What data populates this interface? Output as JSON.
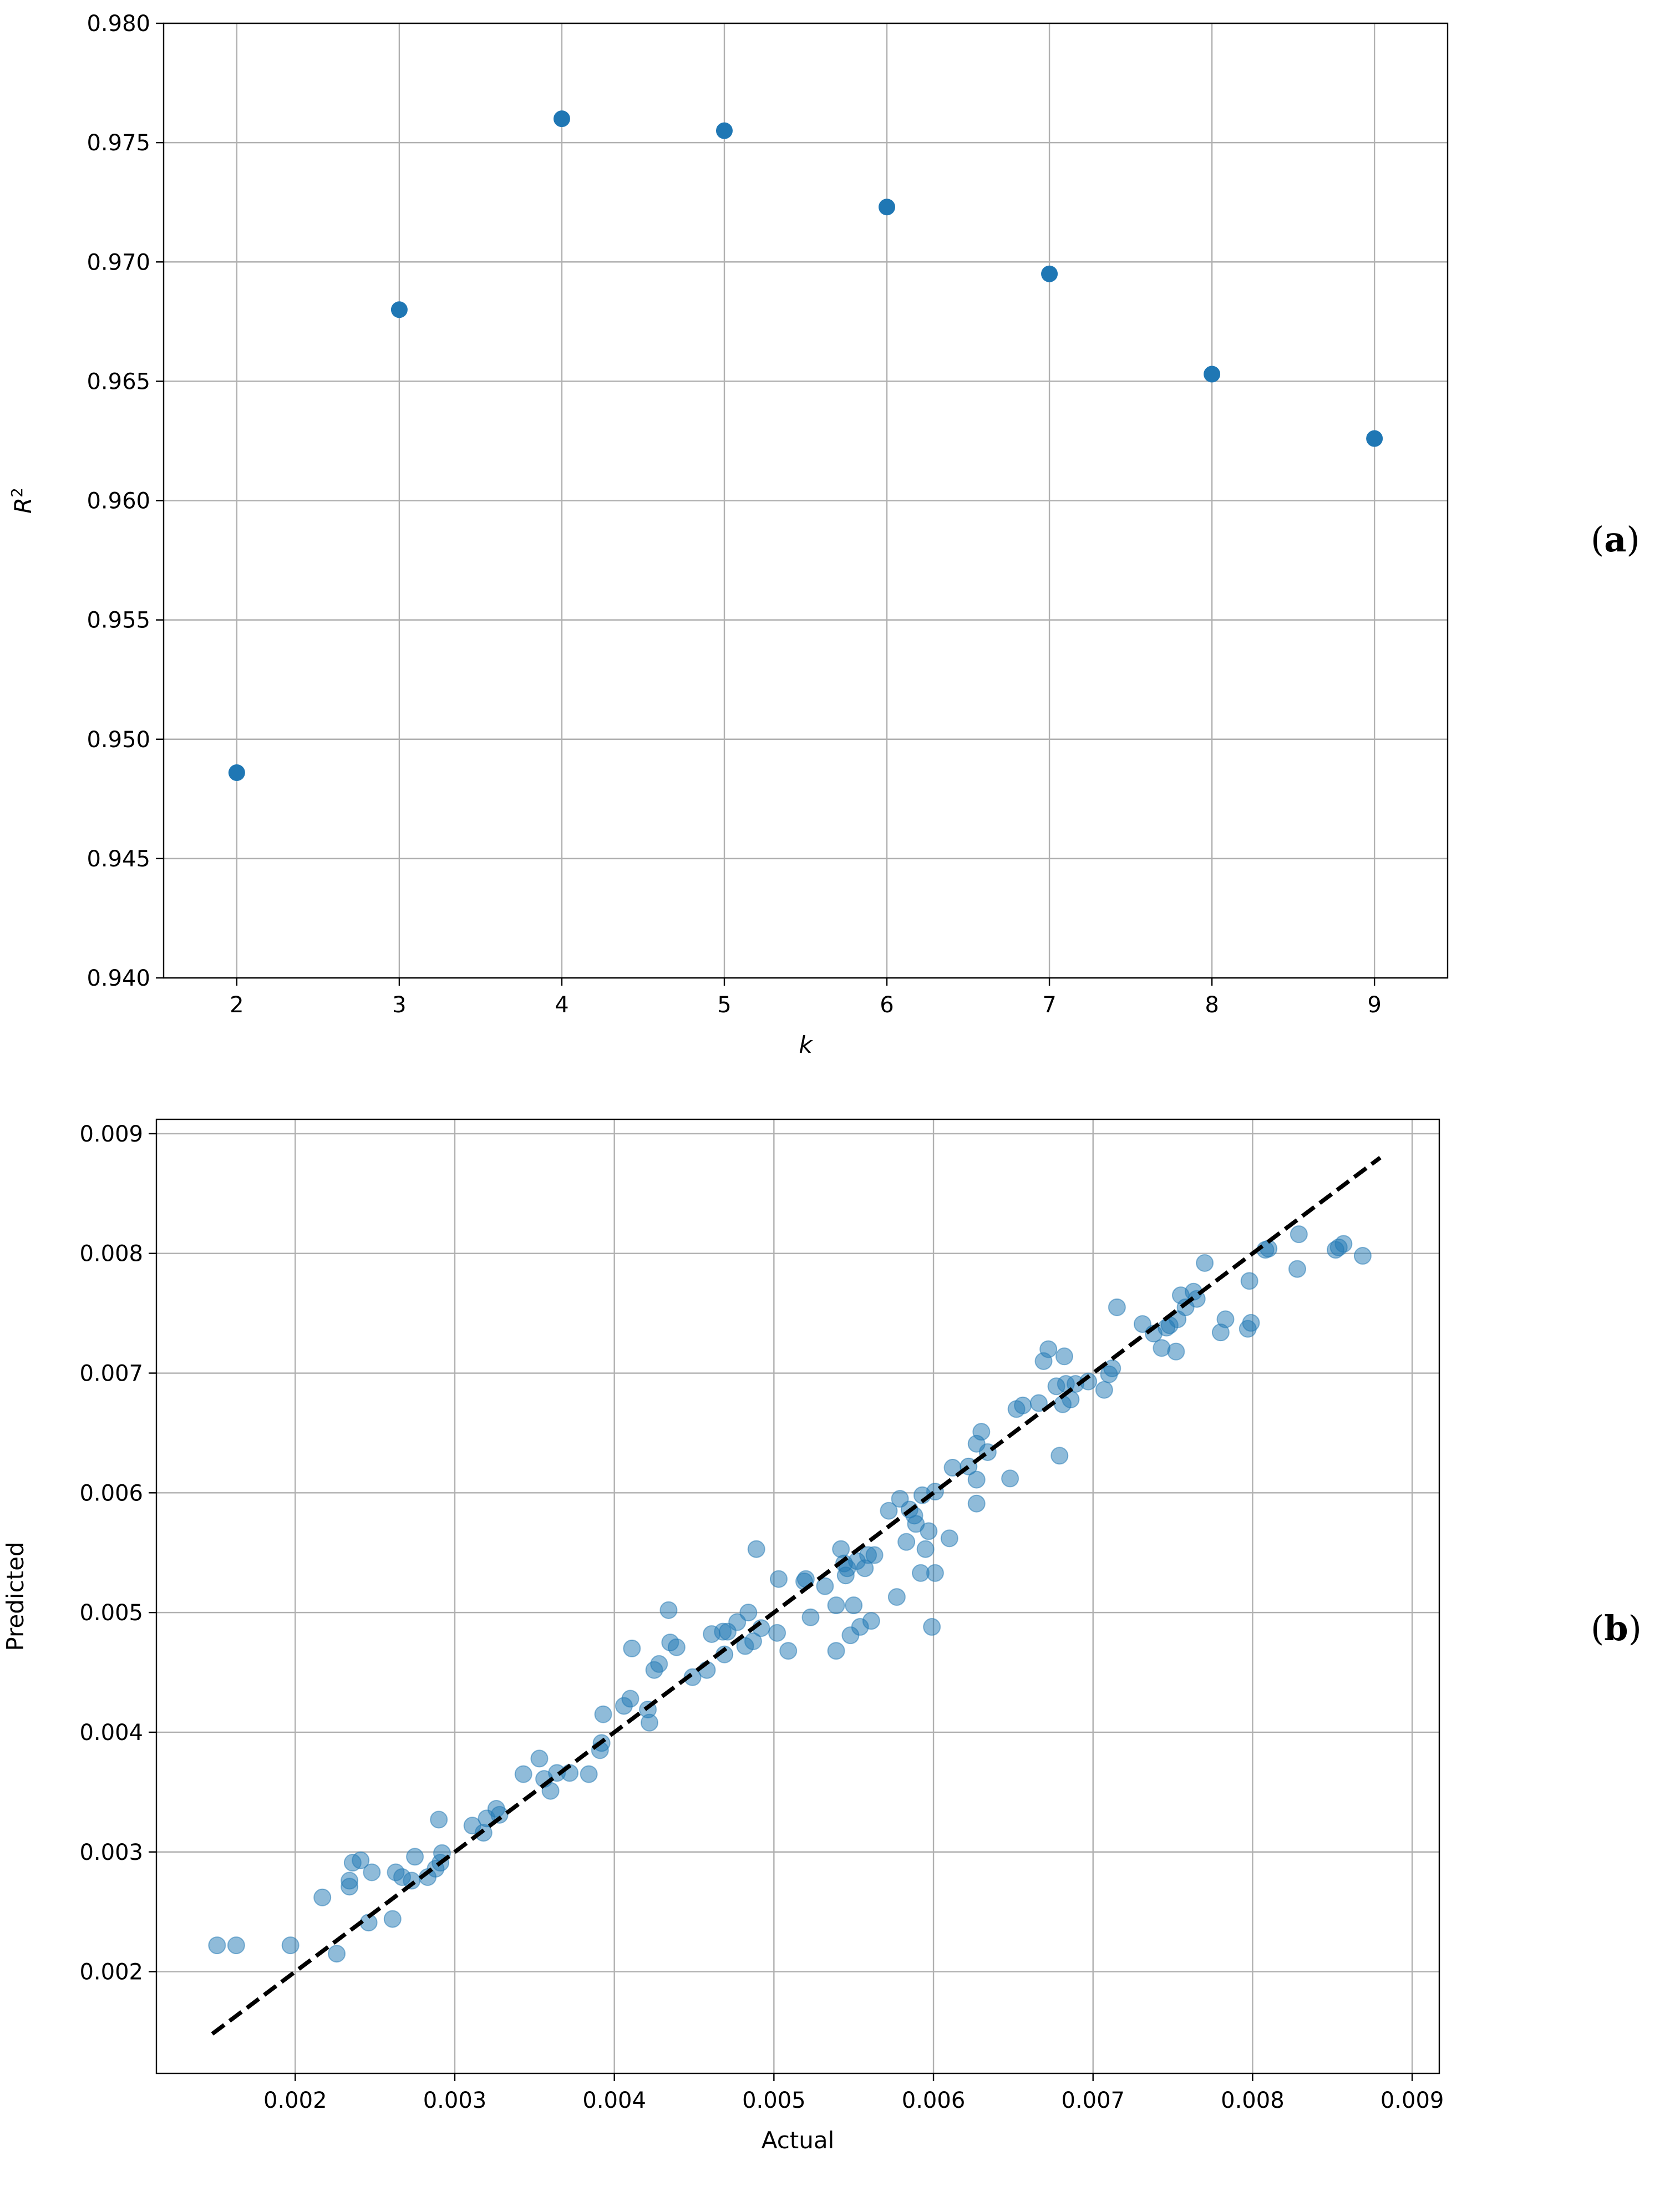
{
  "chart_data": [
    {
      "type": "scatter",
      "panel_label": "a",
      "xlabel": "k",
      "ylabel_base": "R",
      "ylabel_sup": "2",
      "ylim": [
        0.94,
        0.98
      ],
      "xlim": [
        1.55,
        9.45
      ],
      "xticks": [
        2,
        3,
        4,
        5,
        6,
        7,
        8,
        9
      ],
      "xtick_labels": [
        "2",
        "3",
        "4",
        "5",
        "6",
        "7",
        "8",
        "9"
      ],
      "yticks": [
        0.94,
        0.945,
        0.95,
        0.955,
        0.96,
        0.965,
        0.97,
        0.975,
        0.98
      ],
      "ytick_labels": [
        "0.940",
        "0.945",
        "0.950",
        "0.955",
        "0.960",
        "0.965",
        "0.970",
        "0.975",
        "0.980"
      ],
      "grid": true,
      "color": "#1f77b4",
      "x": [
        2,
        3,
        4,
        5,
        6,
        7,
        8,
        9
      ],
      "y": [
        0.9486,
        0.968,
        0.976,
        0.9755,
        0.9723,
        0.9695,
        0.9653,
        0.9626
      ]
    },
    {
      "type": "scatter",
      "panel_label": "b",
      "xlabel": "Actual",
      "ylabel": "Predicted",
      "xlim": [
        0.00113,
        0.00917
      ],
      "ylim": [
        0.00115,
        0.00912
      ],
      "xticks": [
        0.002,
        0.003,
        0.004,
        0.005,
        0.006,
        0.007,
        0.008,
        0.009
      ],
      "xtick_labels": [
        "0.002",
        "0.003",
        "0.004",
        "0.005",
        "0.006",
        "0.007",
        "0.008",
        "0.009"
      ],
      "yticks": [
        0.002,
        0.003,
        0.004,
        0.005,
        0.006,
        0.007,
        0.008,
        0.009
      ],
      "ytick_labels": [
        "0.002",
        "0.003",
        "0.004",
        "0.005",
        "0.006",
        "0.007",
        "0.008",
        "0.009"
      ],
      "grid": true,
      "color": "#1f77b4",
      "point_alpha": 0.5,
      "reference_line": {
        "style": "dashed",
        "color": "#000000",
        "x": [
          0.00148,
          0.0088
        ],
        "y": [
          0.00148,
          0.0088
        ]
      },
      "points": [
        [
          0.00151,
          0.00222
        ],
        [
          0.00163,
          0.00222
        ],
        [
          0.00197,
          0.00222
        ],
        [
          0.00217,
          0.00262
        ],
        [
          0.00226,
          0.00215
        ],
        [
          0.00234,
          0.00276
        ],
        [
          0.00234,
          0.00271
        ],
        [
          0.00236,
          0.00291
        ],
        [
          0.00241,
          0.00293
        ],
        [
          0.00246,
          0.00241
        ],
        [
          0.00248,
          0.00283
        ],
        [
          0.00261,
          0.00244
        ],
        [
          0.00263,
          0.00283
        ],
        [
          0.00267,
          0.00279
        ],
        [
          0.00273,
          0.00276
        ],
        [
          0.00275,
          0.00296
        ],
        [
          0.00283,
          0.00279
        ],
        [
          0.00288,
          0.00286
        ],
        [
          0.0029,
          0.00327
        ],
        [
          0.00291,
          0.00291
        ],
        [
          0.00292,
          0.00299
        ],
        [
          0.00311,
          0.00322
        ],
        [
          0.00318,
          0.00316
        ],
        [
          0.0032,
          0.00328
        ],
        [
          0.00326,
          0.00336
        ],
        [
          0.00328,
          0.00331
        ],
        [
          0.00343,
          0.00365
        ],
        [
          0.00353,
          0.00378
        ],
        [
          0.00356,
          0.00361
        ],
        [
          0.0036,
          0.00351
        ],
        [
          0.00364,
          0.00366
        ],
        [
          0.00372,
          0.00366
        ],
        [
          0.00384,
          0.00365
        ],
        [
          0.00391,
          0.00385
        ],
        [
          0.00392,
          0.00391
        ],
        [
          0.00393,
          0.00415
        ],
        [
          0.00406,
          0.00422
        ],
        [
          0.0041,
          0.00428
        ],
        [
          0.00411,
          0.0047
        ],
        [
          0.00421,
          0.00419
        ],
        [
          0.00422,
          0.00408
        ],
        [
          0.00425,
          0.00452
        ],
        [
          0.00428,
          0.00457
        ],
        [
          0.00434,
          0.00502
        ],
        [
          0.00435,
          0.00475
        ],
        [
          0.00439,
          0.00471
        ],
        [
          0.00449,
          0.00446
        ],
        [
          0.00458,
          0.00452
        ],
        [
          0.00461,
          0.00482
        ],
        [
          0.00468,
          0.00484
        ],
        [
          0.00469,
          0.00465
        ],
        [
          0.00471,
          0.00484
        ],
        [
          0.00477,
          0.00492
        ],
        [
          0.00482,
          0.00472
        ],
        [
          0.00484,
          0.005
        ],
        [
          0.00487,
          0.00476
        ],
        [
          0.00489,
          0.00553
        ],
        [
          0.00492,
          0.00487
        ],
        [
          0.00502,
          0.00483
        ],
        [
          0.00503,
          0.00528
        ],
        [
          0.00509,
          0.00468
        ],
        [
          0.00519,
          0.00526
        ],
        [
          0.0052,
          0.00528
        ],
        [
          0.00523,
          0.00496
        ],
        [
          0.00532,
          0.00522
        ],
        [
          0.00539,
          0.00468
        ],
        [
          0.00539,
          0.00506
        ],
        [
          0.00542,
          0.00553
        ],
        [
          0.00544,
          0.00541
        ],
        [
          0.00545,
          0.00531
        ],
        [
          0.00546,
          0.00537
        ],
        [
          0.00548,
          0.00481
        ],
        [
          0.0055,
          0.00506
        ],
        [
          0.00552,
          0.00543
        ],
        [
          0.00554,
          0.00488
        ],
        [
          0.00557,
          0.00537
        ],
        [
          0.00559,
          0.00548
        ],
        [
          0.00561,
          0.00493
        ],
        [
          0.00563,
          0.00548
        ],
        [
          0.00572,
          0.00585
        ],
        [
          0.00577,
          0.00513
        ],
        [
          0.00579,
          0.00595
        ],
        [
          0.00583,
          0.00559
        ],
        [
          0.00585,
          0.00586
        ],
        [
          0.00588,
          0.00581
        ],
        [
          0.00589,
          0.00574
        ],
        [
          0.00592,
          0.00533
        ],
        [
          0.00593,
          0.00598
        ],
        [
          0.00595,
          0.00553
        ],
        [
          0.00597,
          0.00568
        ],
        [
          0.00599,
          0.00488
        ],
        [
          0.00601,
          0.00533
        ],
        [
          0.00601,
          0.00601
        ],
        [
          0.0061,
          0.00562
        ],
        [
          0.00612,
          0.00621
        ],
        [
          0.00622,
          0.00622
        ],
        [
          0.00627,
          0.00641
        ],
        [
          0.00627,
          0.00611
        ],
        [
          0.00627,
          0.00591
        ],
        [
          0.0063,
          0.00651
        ],
        [
          0.00634,
          0.00634
        ],
        [
          0.00648,
          0.00612
        ],
        [
          0.00652,
          0.0067
        ],
        [
          0.00656,
          0.00673
        ],
        [
          0.00666,
          0.00675
        ],
        [
          0.00669,
          0.0071
        ],
        [
          0.00672,
          0.0072
        ],
        [
          0.00677,
          0.00689
        ],
        [
          0.00679,
          0.00631
        ],
        [
          0.00681,
          0.00674
        ],
        [
          0.00682,
          0.00714
        ],
        [
          0.00683,
          0.00691
        ],
        [
          0.00686,
          0.00678
        ],
        [
          0.00689,
          0.00691
        ],
        [
          0.00697,
          0.00693
        ],
        [
          0.00707,
          0.00686
        ],
        [
          0.0071,
          0.00699
        ],
        [
          0.00712,
          0.00704
        ],
        [
          0.00715,
          0.00755
        ],
        [
          0.00731,
          0.00741
        ],
        [
          0.00738,
          0.00733
        ],
        [
          0.00743,
          0.00721
        ],
        [
          0.00746,
          0.00738
        ],
        [
          0.00748,
          0.0074
        ],
        [
          0.00752,
          0.00718
        ],
        [
          0.00753,
          0.00745
        ],
        [
          0.00755,
          0.00765
        ],
        [
          0.00758,
          0.00755
        ],
        [
          0.00763,
          0.00768
        ],
        [
          0.00765,
          0.00762
        ],
        [
          0.0077,
          0.00792
        ],
        [
          0.0078,
          0.00734
        ],
        [
          0.00783,
          0.00745
        ],
        [
          0.00797,
          0.00737
        ],
        [
          0.00798,
          0.00777
        ],
        [
          0.00799,
          0.00742
        ],
        [
          0.00808,
          0.00803
        ],
        [
          0.0081,
          0.00804
        ],
        [
          0.00828,
          0.00787
        ],
        [
          0.00829,
          0.00816
        ],
        [
          0.00852,
          0.00803
        ],
        [
          0.00854,
          0.00805
        ],
        [
          0.00857,
          0.00808
        ],
        [
          0.00869,
          0.00798
        ]
      ]
    }
  ]
}
